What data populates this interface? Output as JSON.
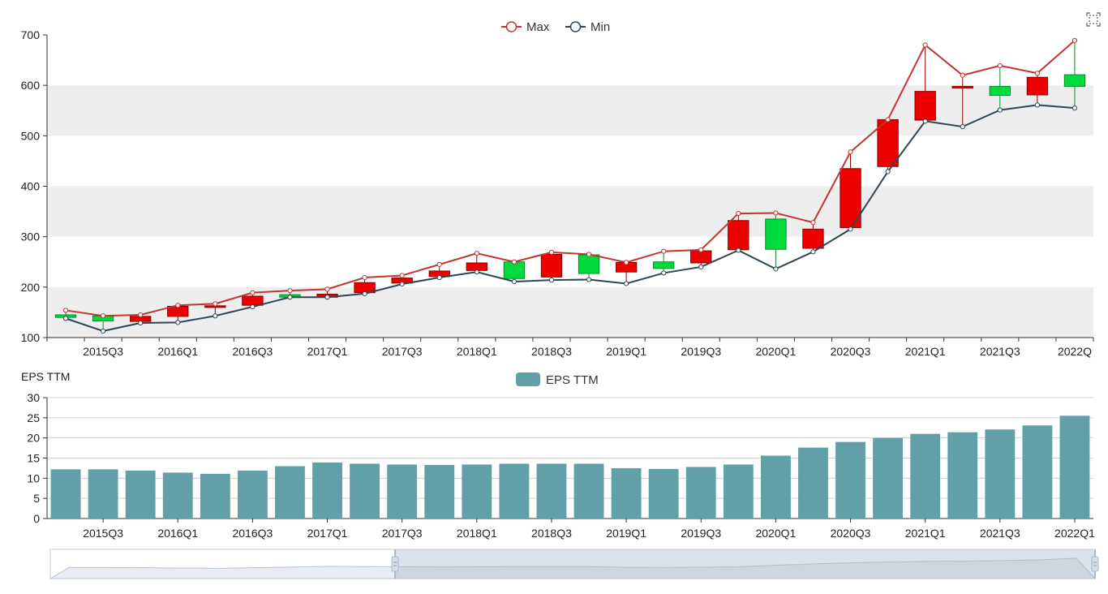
{
  "toolbox": {
    "icon": "zoom-select-icon"
  },
  "chart_data": [
    {
      "type": "candlestick",
      "legend": [
        "Max",
        "Min"
      ],
      "colors": {
        "max_line": "#c23531",
        "min_line": "#2f4554",
        "up": "#00da3c",
        "down": "#ec0000",
        "band": "#eeeeee"
      },
      "categories": [
        "2015Q2",
        "2015Q3",
        "2015Q4",
        "2016Q1",
        "2016Q2",
        "2016Q3",
        "2016Q4",
        "2017Q1",
        "2017Q2",
        "2017Q3",
        "2017Q4",
        "2018Q1",
        "2018Q2",
        "2018Q3",
        "2018Q4",
        "2019Q1",
        "2019Q2",
        "2019Q3",
        "2019Q4",
        "2020Q1",
        "2020Q2",
        "2020Q3",
        "2020Q4",
        "2021Q1",
        "2021Q2",
        "2021Q3",
        "2021Q4",
        "2022Q1"
      ],
      "x_tick_labels": [
        "2015Q3",
        "2016Q1",
        "2016Q3",
        "2017Q1",
        "2017Q3",
        "2018Q1",
        "2018Q3",
        "2019Q1",
        "2019Q3",
        "2020Q1",
        "2020Q3",
        "2021Q1",
        "2021Q3",
        "2022Q"
      ],
      "ylim": [
        100,
        700
      ],
      "y_ticks": [
        "100",
        "200",
        "300",
        "400",
        "500",
        "600",
        "700"
      ],
      "max": [
        154,
        143,
        145,
        164,
        167,
        189,
        193,
        196,
        219,
        223,
        245,
        267,
        250,
        269,
        265,
        249,
        271,
        274,
        346,
        347,
        328,
        468,
        532,
        680,
        620,
        639,
        624,
        689
      ],
      "min": [
        138,
        113,
        129,
        130,
        143,
        161,
        180,
        180,
        187,
        206,
        219,
        230,
        211,
        214,
        215,
        207,
        228,
        240,
        273,
        236,
        270,
        315,
        429,
        529,
        518,
        551,
        561,
        555
      ],
      "ohlc": [
        {
          "open": 140,
          "close": 145
        },
        {
          "open": 133,
          "close": 143
        },
        {
          "open": 142,
          "close": 132
        },
        {
          "open": 162,
          "close": 142
        },
        {
          "open": 163,
          "close": 161
        },
        {
          "open": 182,
          "close": 164
        },
        {
          "open": 180,
          "close": 185
        },
        {
          "open": 186,
          "close": 180
        },
        {
          "open": 209,
          "close": 189
        },
        {
          "open": 218,
          "close": 208
        },
        {
          "open": 232,
          "close": 221
        },
        {
          "open": 248,
          "close": 233
        },
        {
          "open": 217,
          "close": 250
        },
        {
          "open": 265,
          "close": 220
        },
        {
          "open": 227,
          "close": 264
        },
        {
          "open": 249,
          "close": 230
        },
        {
          "open": 237,
          "close": 250
        },
        {
          "open": 272,
          "close": 248
        },
        {
          "open": 332,
          "close": 274
        },
        {
          "open": 275,
          "close": 335
        },
        {
          "open": 315,
          "close": 277
        },
        {
          "open": 435,
          "close": 318
        },
        {
          "open": 532,
          "close": 439
        },
        {
          "open": 588,
          "close": 531
        },
        {
          "open": 598,
          "close": 596
        },
        {
          "open": 580,
          "close": 598
        },
        {
          "open": 616,
          "close": 581
        },
        {
          "open": 598,
          "close": 621
        }
      ]
    },
    {
      "type": "bar",
      "title": "EPS TTM",
      "legend": [
        "EPS TTM"
      ],
      "color": "#61a0a8",
      "categories": [
        "2015Q2",
        "2015Q3",
        "2015Q4",
        "2016Q1",
        "2016Q2",
        "2016Q3",
        "2016Q4",
        "2017Q1",
        "2017Q2",
        "2017Q3",
        "2017Q4",
        "2018Q1",
        "2018Q2",
        "2018Q3",
        "2018Q4",
        "2019Q1",
        "2019Q2",
        "2019Q3",
        "2019Q4",
        "2020Q1",
        "2020Q2",
        "2020Q3",
        "2020Q4",
        "2021Q1",
        "2021Q2",
        "2021Q3",
        "2021Q4",
        "2022Q1"
      ],
      "x_tick_labels": [
        "2015Q3",
        "2016Q1",
        "2016Q3",
        "2017Q1",
        "2017Q3",
        "2018Q1",
        "2018Q3",
        "2019Q1",
        "2019Q3",
        "2020Q1",
        "2020Q3",
        "2021Q1",
        "2021Q3",
        "2022Q1"
      ],
      "ylim": [
        0,
        30
      ],
      "y_ticks": [
        "0",
        "5",
        "10",
        "15",
        "20",
        "25",
        "30"
      ],
      "values": [
        12.2,
        12.2,
        11.9,
        11.4,
        11.1,
        11.9,
        13.0,
        13.9,
        13.6,
        13.4,
        13.3,
        13.4,
        13.6,
        13.6,
        13.6,
        12.5,
        12.3,
        12.8,
        13.4,
        15.6,
        17.6,
        19.0,
        20.0,
        21.0,
        21.4,
        22.1,
        23.1,
        25.5
      ]
    }
  ],
  "data_zoom": {
    "start": 0.33,
    "end": 1.0
  }
}
